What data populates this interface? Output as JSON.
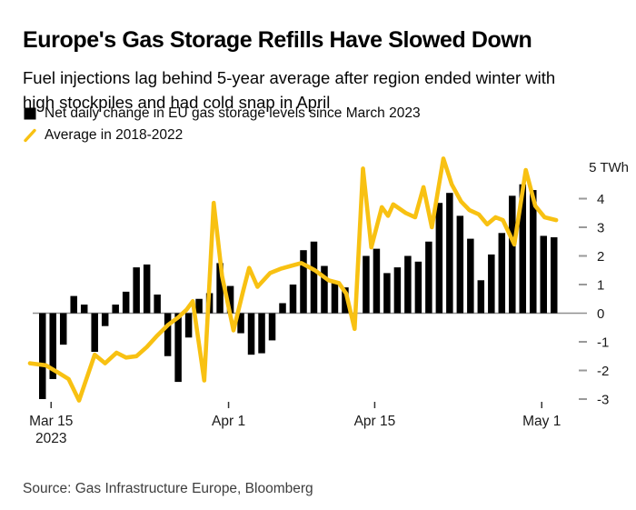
{
  "header": {
    "title": "Europe's Gas Storage Refills Have Slowed Down",
    "subtitle": "Fuel injections lag behind 5-year average after region ended winter with high stockpiles and had cold snap in April"
  },
  "legend": [
    {
      "swatch": "black-square",
      "color": "#000000",
      "label": "Net daily change in EU gas storage levels since March 2023"
    },
    {
      "swatch": "yellow-slash",
      "color": "#F8C112",
      "label": "Average in 2018-2022"
    }
  ],
  "chart_data": {
    "type": "bar+line",
    "unit": "TWh",
    "bar_series_name": "Net daily change in EU gas storage levels since March 2023",
    "line_series_name": "Average in 2018-2022",
    "n_slots": 50,
    "bar_values": [
      -3.0,
      -2.3,
      -1.1,
      0.6,
      0.3,
      -1.35,
      -0.45,
      0.3,
      0.75,
      1.6,
      1.7,
      0.65,
      -1.5,
      -2.4,
      -0.85,
      0.5,
      0.7,
      1.75,
      0.95,
      -0.7,
      -1.45,
      -1.4,
      -0.95,
      0.35,
      1.0,
      2.2,
      2.5,
      1.65,
      1.05,
      0.9,
      null,
      2.0,
      2.25,
      1.4,
      1.6,
      2.0,
      1.8,
      2.5,
      3.85,
      4.2,
      3.4,
      2.6,
      1.15,
      2.05,
      2.8,
      4.1,
      4.5,
      4.3,
      2.7,
      2.65
    ],
    "line_points": [
      [
        -1.2,
        -1.75
      ],
      [
        0.3,
        -1.82
      ],
      [
        1.4,
        -2.05
      ],
      [
        2.5,
        -2.3
      ],
      [
        3.5,
        -3.05
      ],
      [
        5,
        -1.45
      ],
      [
        6,
        -1.75
      ],
      [
        7.1,
        -1.38
      ],
      [
        8,
        -1.55
      ],
      [
        9,
        -1.5
      ],
      [
        10,
        -1.18
      ],
      [
        11,
        -0.78
      ],
      [
        12,
        -0.42
      ],
      [
        13,
        -0.15
      ],
      [
        13.8,
        0.12
      ],
      [
        14.4,
        0.42
      ],
      [
        15.5,
        -2.35
      ],
      [
        16.4,
        3.85
      ],
      [
        17.2,
        1.3
      ],
      [
        18.3,
        -0.6
      ],
      [
        19.2,
        0.75
      ],
      [
        19.8,
        1.58
      ],
      [
        20.6,
        0.92
      ],
      [
        21.8,
        1.4
      ],
      [
        22.8,
        1.55
      ],
      [
        23.8,
        1.65
      ],
      [
        24.8,
        1.75
      ],
      [
        26.1,
        1.5
      ],
      [
        27.4,
        1.15
      ],
      [
        28.4,
        1.05
      ],
      [
        29.1,
        0.68
      ],
      [
        29.9,
        -0.55
      ],
      [
        30.7,
        5.05
      ],
      [
        31.5,
        2.3
      ],
      [
        32.5,
        3.7
      ],
      [
        33.1,
        3.4
      ],
      [
        33.6,
        3.8
      ],
      [
        34.8,
        3.5
      ],
      [
        35.7,
        3.35
      ],
      [
        36.5,
        4.4
      ],
      [
        37.3,
        3.0
      ],
      [
        38.4,
        5.4
      ],
      [
        39.2,
        4.5
      ],
      [
        40.1,
        3.9
      ],
      [
        40.9,
        3.6
      ],
      [
        41.8,
        3.45
      ],
      [
        42.6,
        3.1
      ],
      [
        43.4,
        3.35
      ],
      [
        44.1,
        3.25
      ],
      [
        45.2,
        2.4
      ],
      [
        46.3,
        5.0
      ],
      [
        47.2,
        3.75
      ],
      [
        48.1,
        3.35
      ],
      [
        49.2,
        3.25
      ]
    ],
    "y_axis": {
      "top_label": "5 TWh",
      "ticks": [
        4,
        3,
        2,
        1,
        0,
        -1,
        -2,
        -3
      ],
      "min": -3.3,
      "max": 5.5
    },
    "x_ticks": [
      {
        "slot": 1,
        "label": "Mar 15",
        "sublabel": "2023"
      },
      {
        "slot": 18,
        "label": "Apr 1"
      },
      {
        "slot": 32,
        "label": "Apr 15"
      },
      {
        "slot": 48,
        "label": "May 1"
      }
    ],
    "colors": {
      "bar": "#000000",
      "line": "#F8C112",
      "axis_line": "#8f8f8f",
      "tick_dash": "#999999",
      "tick_text": "#1a1a1a"
    }
  },
  "source": {
    "label": "Source: Gas Infrastructure Europe, Bloomberg"
  }
}
